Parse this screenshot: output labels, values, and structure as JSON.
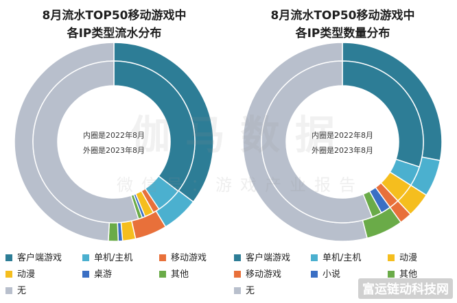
{
  "colors": {
    "客户端游戏": "#2d7d96",
    "单机/主机": "#4bb0cf",
    "移动游戏": "#e8703a",
    "动漫": "#f5be1e",
    "桌游": "#3a6fc4",
    "小说": "#3a6fc4",
    "其他": "#6aab48",
    "无": "#b8bfcc"
  },
  "watermark": {
    "main": "伽马数据",
    "sub": "微信号：游戏产业报告"
  },
  "footer_mark": "富运链动科技网",
  "chart_data": [
    {
      "type": "pie",
      "title": [
        "8月流水TOP50移动游戏中",
        "各IP类型流水分布"
      ],
      "center_text": [
        "内圈是2022年8月",
        "外圈是2023年8月"
      ],
      "rings": [
        {
          "name": "外圈是2023年8月",
          "slices": [
            {
              "label": "客户端游戏",
              "value": 35.3
            },
            {
              "label": "单机/主机",
              "value": 6.0
            },
            {
              "label": "移动游戏",
              "value": 5.2
            },
            {
              "label": "动漫",
              "value": 2.1
            },
            {
              "label": "桌游",
              "value": 0.7
            },
            {
              "label": "其他",
              "value": 1.6
            },
            {
              "label": "无",
              "value": 49.1
            }
          ]
        },
        {
          "name": "内圈是2022年8月",
          "slices": [
            {
              "label": "客户端游戏",
              "value": 35.4
            },
            {
              "label": "单机/主机",
              "value": 5.2
            },
            {
              "label": "移动游戏",
              "value": 1.3
            },
            {
              "label": "动漫",
              "value": 1.8
            },
            {
              "label": "桌游",
              "value": 0.6
            },
            {
              "label": "其他",
              "value": 0.8
            },
            {
              "label": "无",
              "value": 54.9
            }
          ]
        }
      ],
      "legend": [
        "客户端游戏",
        "单机/主机",
        "移动游戏",
        "动漫",
        "桌游",
        "其他",
        "无"
      ]
    },
    {
      "type": "pie",
      "title": [
        "8月流水TOP50移动游戏中",
        "各IP类型数量分布"
      ],
      "center_text": [
        "内圈是2022年8月",
        "外圈是2023年8月"
      ],
      "rings": [
        {
          "name": "外圈是2023年8月",
          "slices": [
            {
              "label": "客户端游戏",
              "value": 28
            },
            {
              "label": "单机/主机",
              "value": 6
            },
            {
              "label": "动漫",
              "value": 4
            },
            {
              "label": "移动游戏",
              "value": 2
            },
            {
              "label": "其他",
              "value": 6
            },
            {
              "label": "无",
              "value": 54
            }
          ]
        },
        {
          "name": "内圈是2022年8月",
          "slices": [
            {
              "label": "客户端游戏",
              "value": 30
            },
            {
              "label": "单机/主机",
              "value": 4
            },
            {
              "label": "动漫",
              "value": 4
            },
            {
              "label": "移动游戏",
              "value": 2
            },
            {
              "label": "小说",
              "value": 2
            },
            {
              "label": "其他",
              "value": 2
            },
            {
              "label": "无",
              "value": 56
            }
          ]
        }
      ],
      "legend": [
        "客户端游戏",
        "单机/主机",
        "动漫",
        "移动游戏",
        "小说",
        "其他",
        "无"
      ]
    }
  ]
}
